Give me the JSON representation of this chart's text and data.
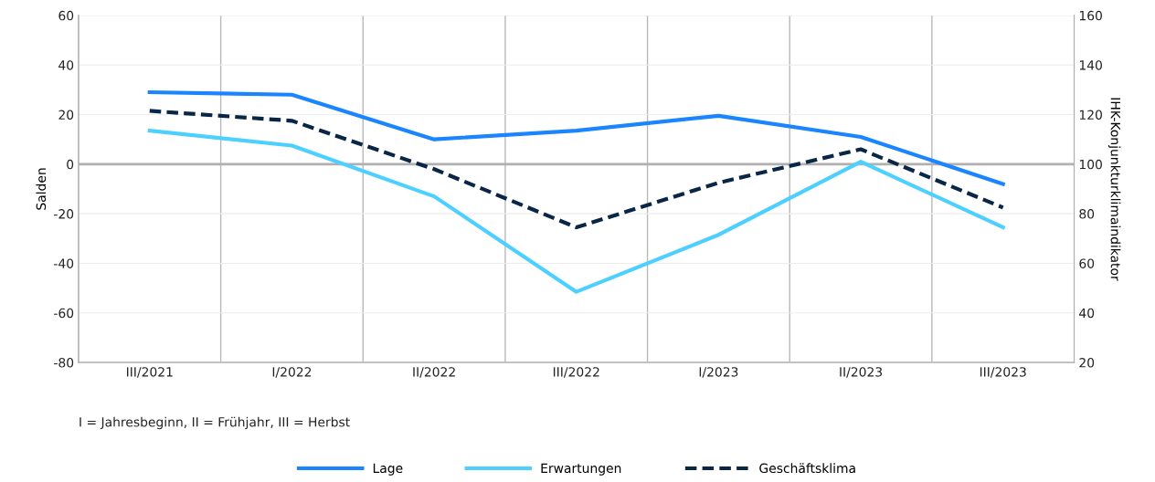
{
  "chart_data": {
    "type": "line",
    "ylabel": "Salden",
    "y2label": "IHK-Konjunkturklimaindikator",
    "categories": [
      "III/2021",
      "I/2022",
      "II/2022",
      "III/2022",
      "I/2023",
      "II/2023",
      "III/2023"
    ],
    "series": [
      {
        "name": "Lage",
        "color": "#1a85ff",
        "values": [
          29,
          28,
          10,
          13.5,
          19.5,
          11,
          -8
        ]
      },
      {
        "name": "Erwartungen",
        "color": "#4dd0ff",
        "values": [
          13.5,
          7.5,
          -13,
          -51.5,
          -28.5,
          1,
          -25.5
        ]
      },
      {
        "name": "Geschäftsklima",
        "color": "#0a2647",
        "axis": "y2",
        "line_style": "dashed",
        "values": [
          121.5,
          117.5,
          98,
          74.5,
          92.5,
          106,
          82.5
        ]
      }
    ],
    "ylim": [
      -80,
      60
    ],
    "yticks": [
      -80,
      -60,
      -40,
      -20,
      0,
      20,
      40,
      60
    ],
    "y2lim": [
      20,
      160
    ],
    "y2ticks": [
      20,
      40,
      60,
      80,
      100,
      120,
      140,
      160
    ],
    "ref_lines": [
      {
        "axis": "y",
        "value": 0,
        "color": "#b0b0b0"
      }
    ],
    "annotations": [
      "I = Jahresbeginn, II = Frühjahr, III = Herbst"
    ],
    "grid": true,
    "legend": "bottom",
    "marker": "none",
    "line_style": "solid"
  }
}
